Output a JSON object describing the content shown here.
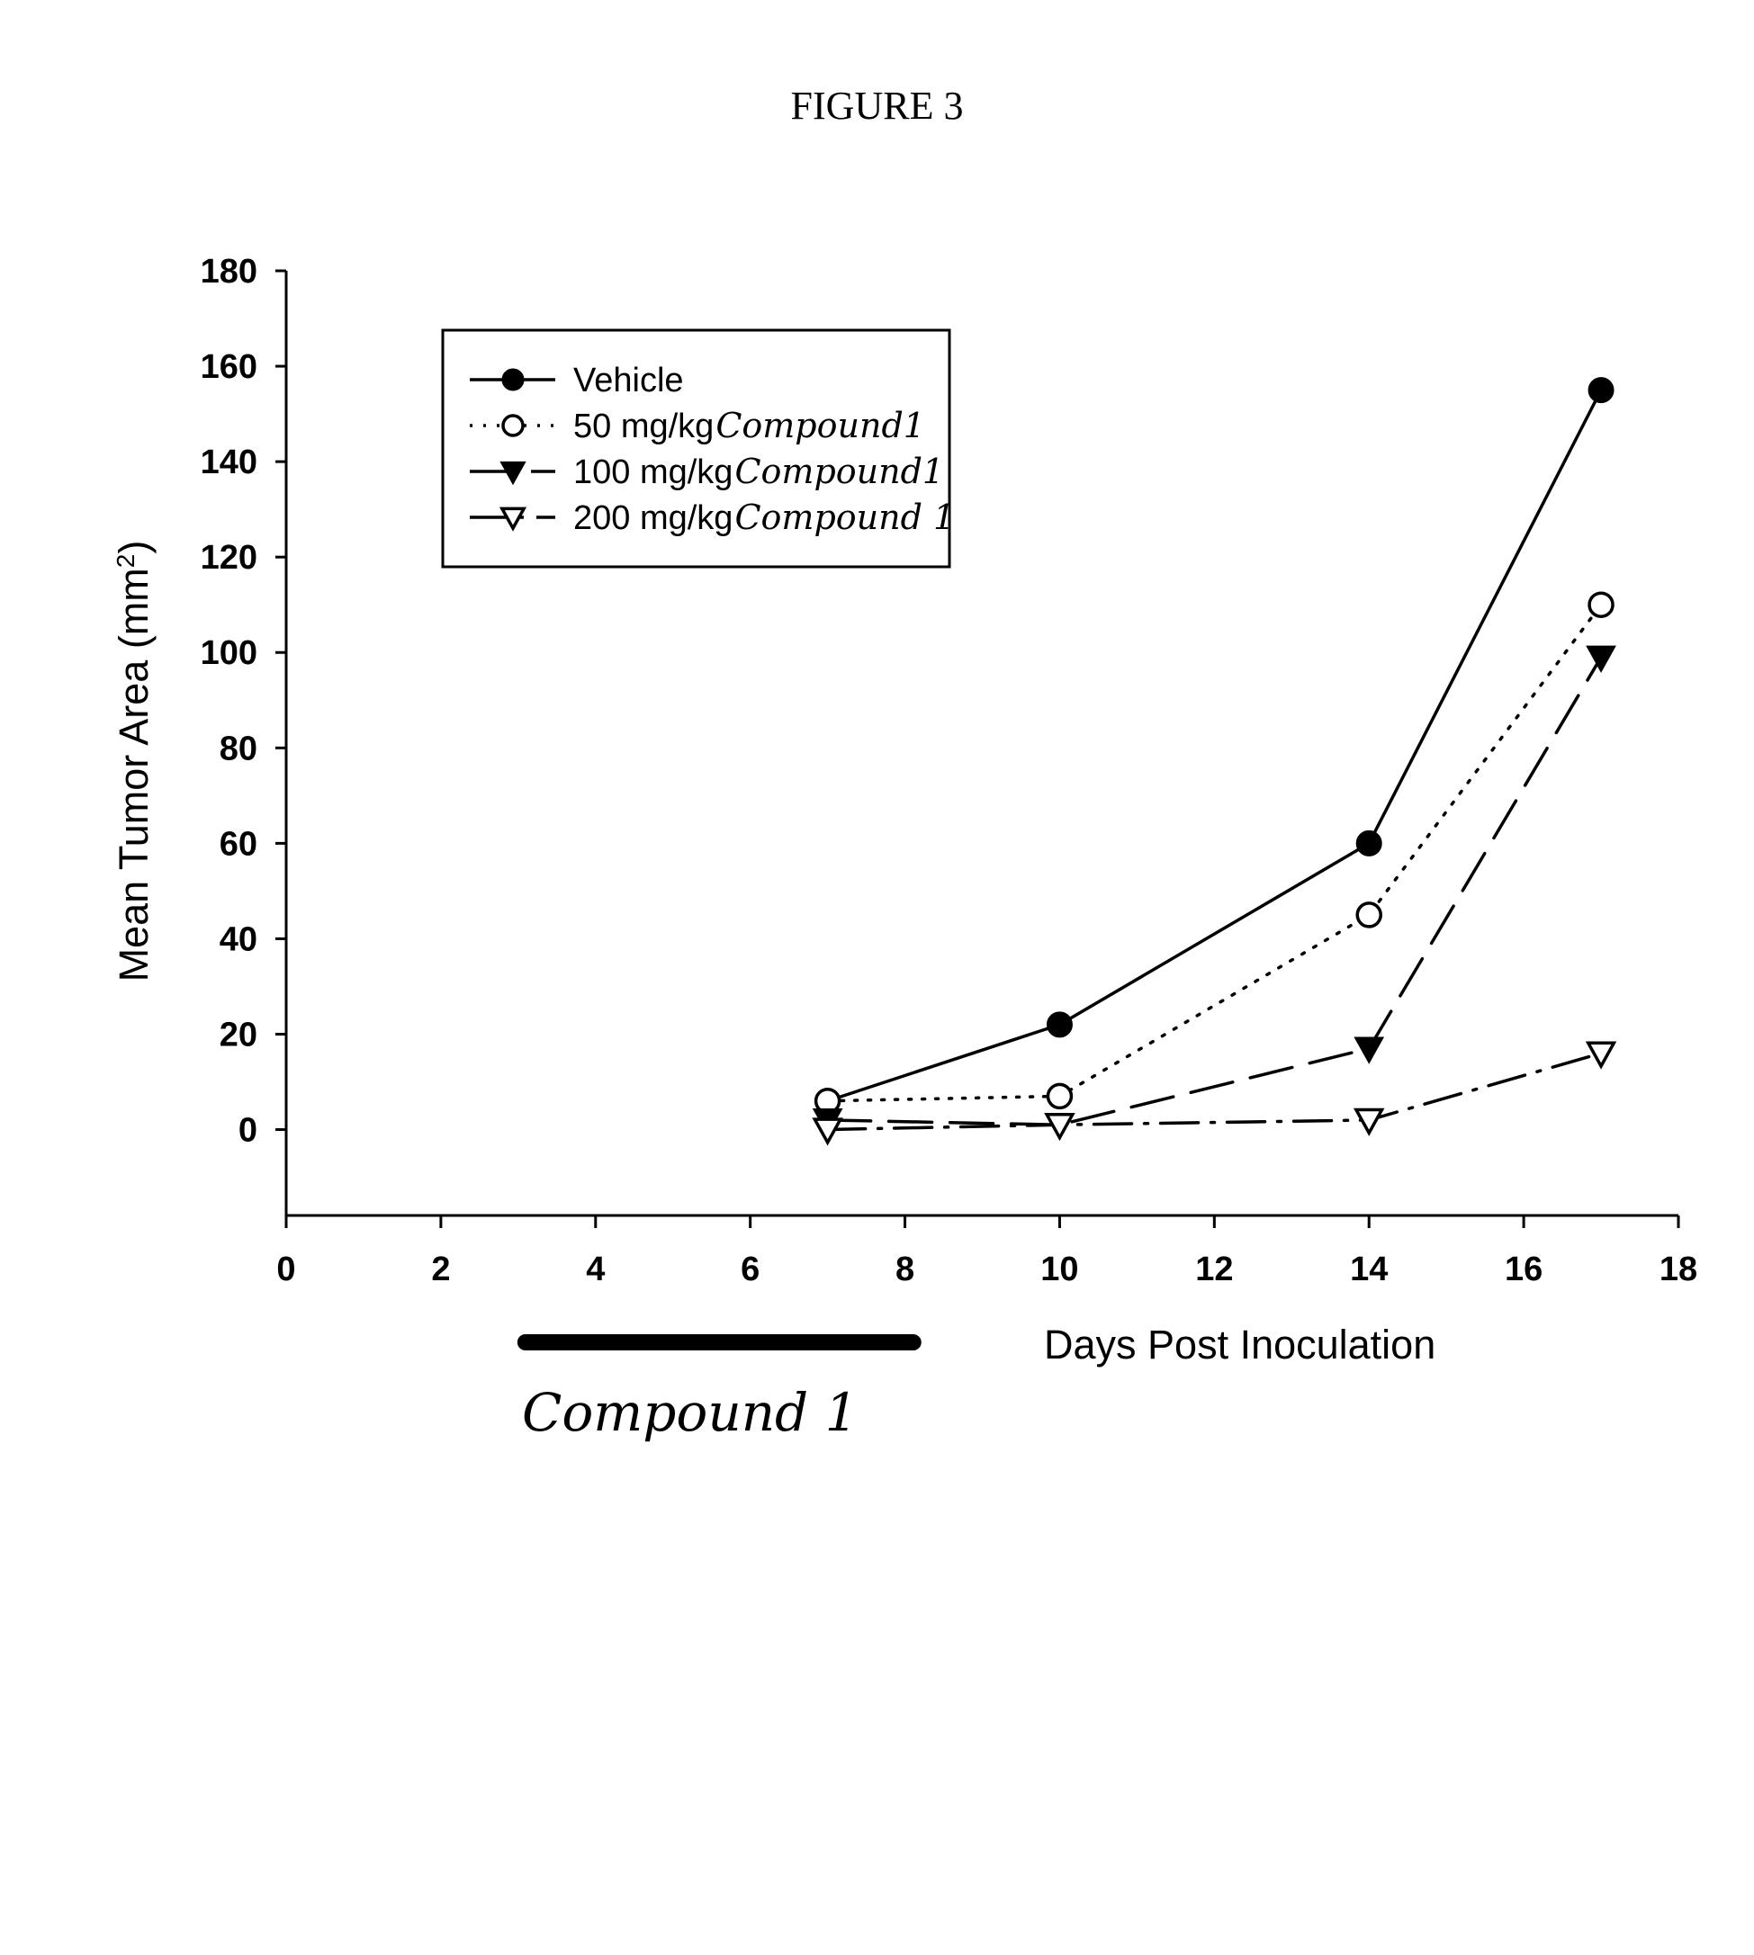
{
  "figure_title": "FIGURE 3",
  "dose_bar_label": "Compound 1",
  "chart_data": {
    "type": "line",
    "title": "",
    "xlabel": "Days Post Inoculation",
    "ylabel": "Mean Tumor Area (mm²)",
    "xlim": [
      0,
      18
    ],
    "ylim": [
      -18,
      180
    ],
    "xticks": [
      0,
      2,
      4,
      6,
      8,
      10,
      12,
      14,
      16,
      18
    ],
    "yticks": [
      0,
      20,
      40,
      60,
      80,
      100,
      120,
      140,
      160,
      180
    ],
    "grid": false,
    "legend_position": "top-left",
    "dosing_period": [
      3,
      8.2
    ],
    "series": [
      {
        "name": "Vehicle",
        "handwritten": "",
        "marker": "filled-circle",
        "line": "solid",
        "x": [
          7,
          10,
          14,
          17
        ],
        "y": [
          6,
          22,
          60,
          155
        ]
      },
      {
        "name": "50 mg/kg",
        "handwritten": "Compound1",
        "marker": "open-circle",
        "line": "dotted",
        "x": [
          7,
          10,
          14,
          17
        ],
        "y": [
          6,
          7,
          45,
          110
        ]
      },
      {
        "name": "100 mg/kg",
        "handwritten": "Compound1",
        "marker": "filled-triangle-down",
        "line": "dashed",
        "x": [
          7,
          10,
          14,
          17
        ],
        "y": [
          2,
          1,
          17,
          99
        ]
      },
      {
        "name": "200 mg/kg",
        "handwritten": "Compound 1",
        "marker": "open-triangle-down",
        "line": "dash-dot",
        "x": [
          7,
          10,
          14,
          17
        ],
        "y": [
          0,
          1,
          2,
          16
        ]
      }
    ]
  }
}
